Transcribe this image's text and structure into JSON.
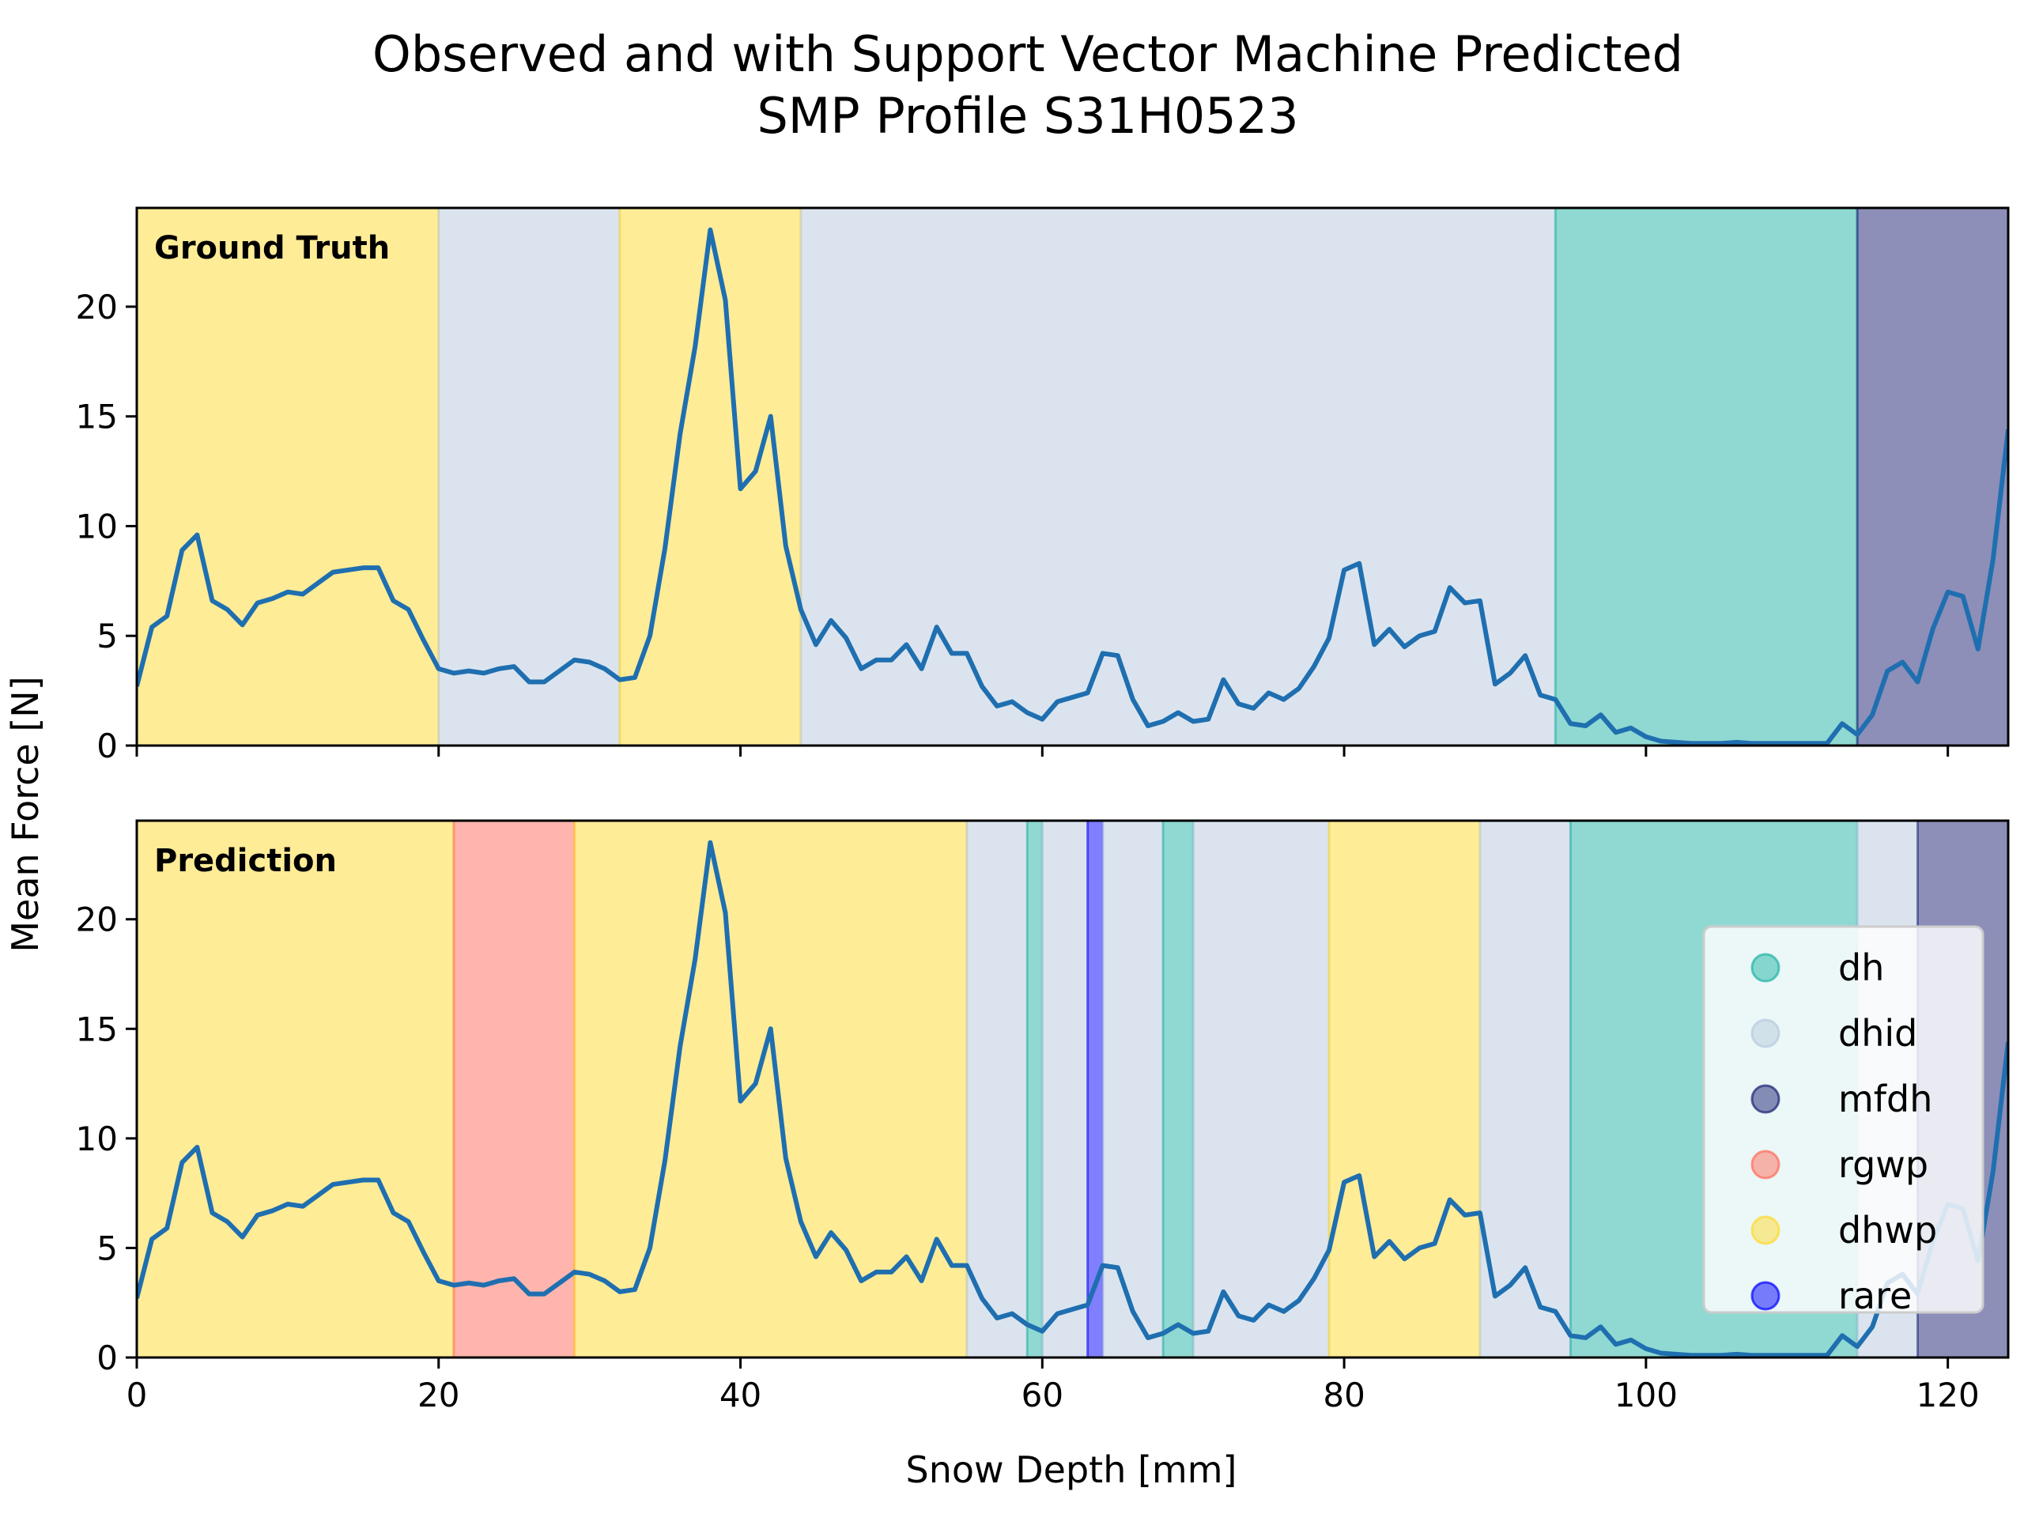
{
  "title_lines": [
    "Observed and with Support Vector Machine Predicted",
    "SMP Profile S31H0523"
  ],
  "colors": {
    "dh": "#1fb3a6",
    "dhid": "#b8c9de",
    "mfdh": "#1b1f73",
    "rgwp": "#ff6b5b",
    "dhwp": "#ffd92f",
    "rare": "#0000ff",
    "line": "#1f6fb0"
  },
  "legend": {
    "placement": "lower-right of bottom panel",
    "entries": [
      {
        "key": "dh",
        "label": "dh"
      },
      {
        "key": "dhid",
        "label": "dhid"
      },
      {
        "key": "mfdh",
        "label": "mfdh"
      },
      {
        "key": "rgwp",
        "label": "rgwp"
      },
      {
        "key": "dhwp",
        "label": "dhwp"
      },
      {
        "key": "rare",
        "label": "rare"
      }
    ]
  },
  "chart_data": [
    {
      "type": "line",
      "panel_label": "Ground Truth",
      "xlabel": "",
      "ylabel": "Mean Force [N]",
      "xlim": [
        0,
        124
      ],
      "ylim": [
        0,
        24.5
      ],
      "x_ticks": [
        0,
        20,
        40,
        60,
        80,
        100,
        120
      ],
      "y_ticks": [
        0,
        5,
        10,
        15,
        20
      ],
      "show_x_tick_labels": false,
      "grid": false,
      "segments": [
        {
          "start": 0,
          "end": 20,
          "label": "dhwp"
        },
        {
          "start": 20,
          "end": 32,
          "label": "dhid"
        },
        {
          "start": 32,
          "end": 44,
          "label": "dhwp"
        },
        {
          "start": 44,
          "end": 94,
          "label": "dhid"
        },
        {
          "start": 94,
          "end": 114,
          "label": "dh"
        },
        {
          "start": 114,
          "end": 124,
          "label": "mfdh"
        }
      ]
    },
    {
      "type": "line",
      "panel_label": "Prediction",
      "xlabel": "Snow Depth [mm]",
      "ylabel": "Mean Force [N]",
      "xlim": [
        0,
        124
      ],
      "ylim": [
        0,
        24.5
      ],
      "x_ticks": [
        0,
        20,
        40,
        60,
        80,
        100,
        120
      ],
      "y_ticks": [
        0,
        5,
        10,
        15,
        20
      ],
      "show_x_tick_labels": true,
      "grid": false,
      "segments": [
        {
          "start": 0,
          "end": 21,
          "label": "dhwp"
        },
        {
          "start": 21,
          "end": 29,
          "label": "rgwp"
        },
        {
          "start": 29,
          "end": 55,
          "label": "dhwp"
        },
        {
          "start": 55,
          "end": 59,
          "label": "dhid"
        },
        {
          "start": 59,
          "end": 60,
          "label": "dh"
        },
        {
          "start": 60,
          "end": 63,
          "label": "dhid"
        },
        {
          "start": 63,
          "end": 64,
          "label": "rare"
        },
        {
          "start": 64,
          "end": 68,
          "label": "dhid"
        },
        {
          "start": 68,
          "end": 70,
          "label": "dh"
        },
        {
          "start": 70,
          "end": 79,
          "label": "dhid"
        },
        {
          "start": 79,
          "end": 89,
          "label": "dhwp"
        },
        {
          "start": 89,
          "end": 95,
          "label": "dhid"
        },
        {
          "start": 95,
          "end": 114,
          "label": "dh"
        },
        {
          "start": 114,
          "end": 118,
          "label": "dhid"
        },
        {
          "start": 118,
          "end": 124,
          "label": "mfdh"
        }
      ]
    }
  ],
  "force_profile": {
    "x": [
      0,
      1,
      2,
      3,
      4,
      5,
      6,
      7,
      8,
      9,
      10,
      11,
      12,
      13,
      14,
      15,
      16,
      17,
      18,
      19,
      20,
      21,
      22,
      23,
      24,
      25,
      26,
      27,
      28,
      29,
      30,
      31,
      32,
      33,
      34,
      35,
      36,
      37,
      38,
      39,
      40,
      41,
      42,
      43,
      44,
      45,
      46,
      47,
      48,
      49,
      50,
      51,
      52,
      53,
      54,
      55,
      56,
      57,
      58,
      59,
      60,
      61,
      62,
      63,
      64,
      65,
      66,
      67,
      68,
      69,
      70,
      71,
      72,
      73,
      74,
      75,
      76,
      77,
      78,
      79,
      80,
      81,
      82,
      83,
      84,
      85,
      86,
      87,
      88,
      89,
      90,
      91,
      92,
      93,
      94,
      95,
      96,
      97,
      98,
      99,
      100,
      101,
      102,
      103,
      104,
      105,
      106,
      107,
      108,
      109,
      110,
      111,
      112,
      113,
      114,
      115,
      116,
      117,
      118,
      119,
      120,
      121,
      122,
      123,
      124
    ],
    "y": [
      2.7,
      5.4,
      5.9,
      8.9,
      9.6,
      6.6,
      6.2,
      5.5,
      6.5,
      6.7,
      7.0,
      6.9,
      7.4,
      7.9,
      8.0,
      8.1,
      8.1,
      6.6,
      6.2,
      4.8,
      3.5,
      3.3,
      3.4,
      3.3,
      3.5,
      3.6,
      2.9,
      2.9,
      3.4,
      3.9,
      3.8,
      3.5,
      3.0,
      3.1,
      5.0,
      9.0,
      14.2,
      18.2,
      23.5,
      20.3,
      11.7,
      12.5,
      15.0,
      9.1,
      6.2,
      4.6,
      5.7,
      4.9,
      3.5,
      3.9,
      3.9,
      4.6,
      3.5,
      5.4,
      4.2,
      4.2,
      2.7,
      1.8,
      2.0,
      1.5,
      1.2,
      2.0,
      2.2,
      2.4,
      4.2,
      4.1,
      2.1,
      0.9,
      1.1,
      1.5,
      1.1,
      1.2,
      3.0,
      1.9,
      1.7,
      2.4,
      2.1,
      2.6,
      3.6,
      4.9,
      8.0,
      8.3,
      4.6,
      5.3,
      4.5,
      5.0,
      5.2,
      7.2,
      6.5,
      6.6,
      2.8,
      3.3,
      4.1,
      2.3,
      2.1,
      1.0,
      0.9,
      1.4,
      0.6,
      0.8,
      0.4,
      0.2,
      0.15,
      0.1,
      0.1,
      0.1,
      0.15,
      0.1,
      0.1,
      0.1,
      0.1,
      0.1,
      0.1,
      1.0,
      0.5,
      1.4,
      3.4,
      3.8,
      2.9,
      5.3,
      7.0,
      6.8,
      4.4,
      8.5,
      14.4
    ]
  }
}
